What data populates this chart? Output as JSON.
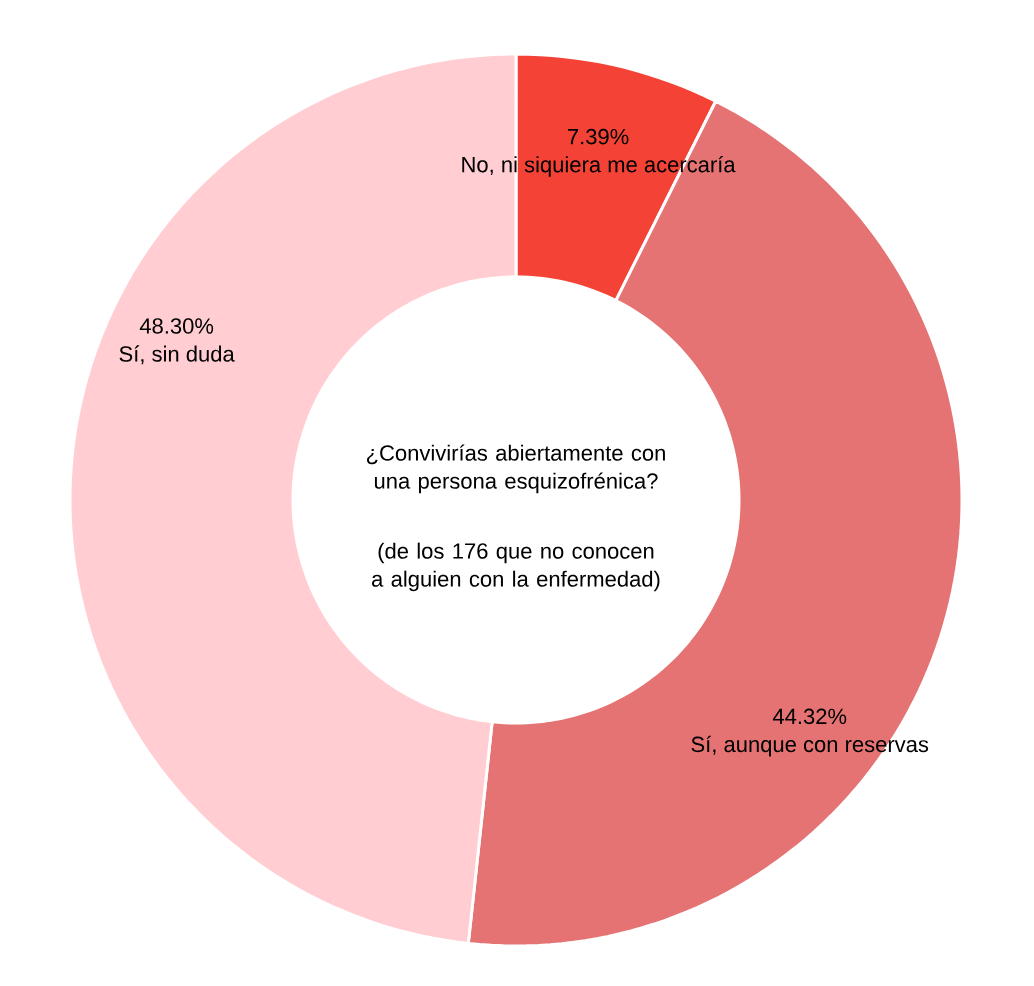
{
  "chart_data": {
    "type": "donut",
    "title": "¿Convivirías abiertamente con una persona esquizofrénica?",
    "subtitle": "(de los 176 que no conocen a alguien con la enfermedad)",
    "categories": [
      "No, ni siquiera me acercaría",
      "Sí, aunque con reservas",
      "Sí, sin duda"
    ],
    "values": [
      7.39,
      44.32,
      48.3
    ],
    "colors": [
      "#f44336",
      "#e57373",
      "#ffcdd2"
    ],
    "value_labels": [
      "7.39%",
      "44.32%",
      "48.30%"
    ]
  }
}
